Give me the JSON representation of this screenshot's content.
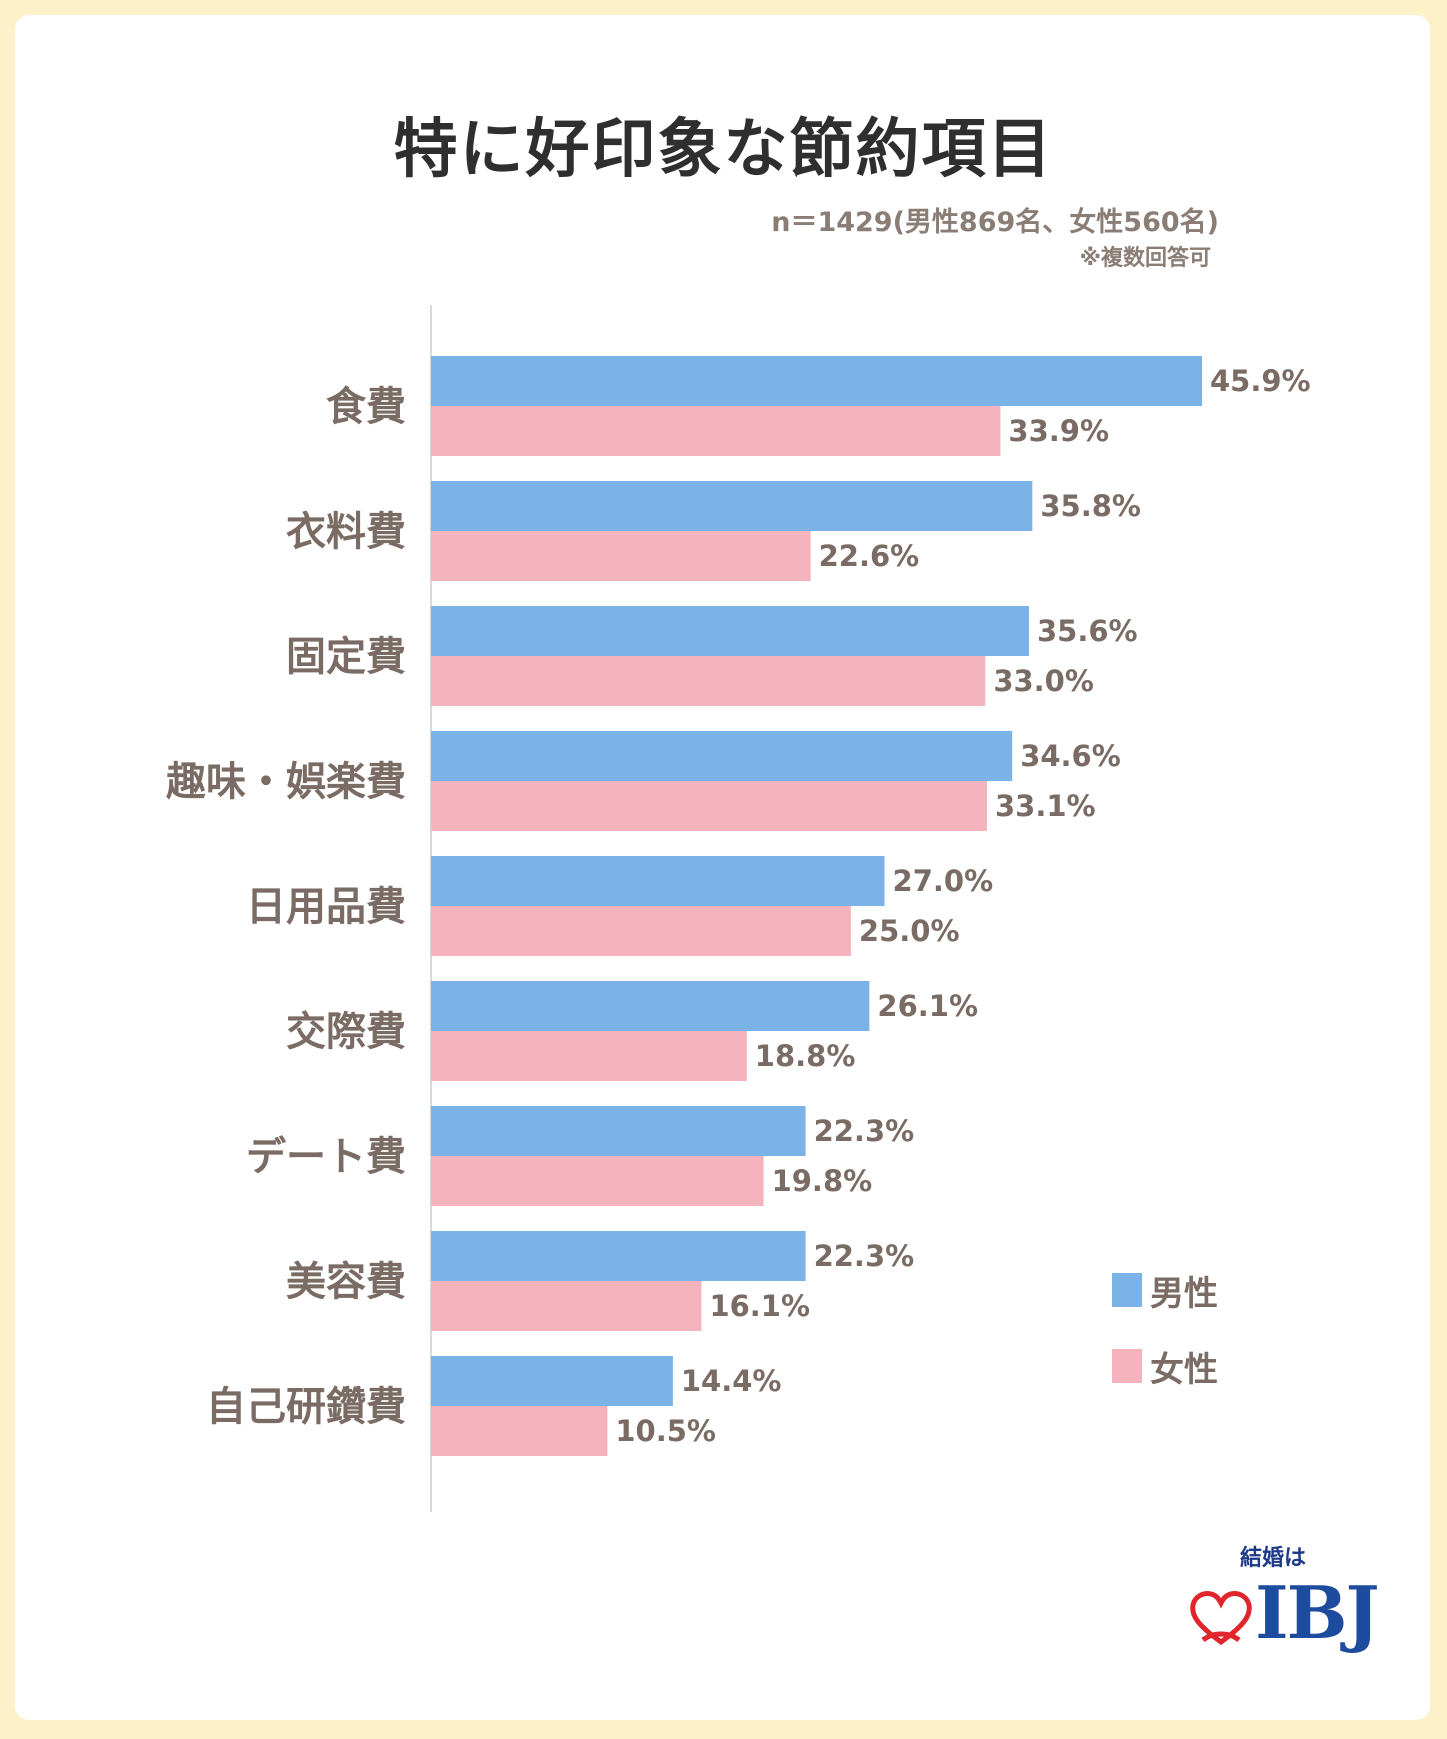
{
  "title": "特に好印象な節約項目",
  "note_sample": "n＝1429(男性869名、女性560名)",
  "note_multi": "※複数回答可",
  "colors": {
    "male": "#7cb3e6",
    "female": "#f5b3bd",
    "axis": "#d9d9d9"
  },
  "chart_data": {
    "type": "bar",
    "orientation": "horizontal",
    "categories": [
      "食費",
      "衣料費",
      "固定費",
      "趣味・娯楽費",
      "日用品費",
      "交際費",
      "デート費",
      "美容費",
      "自己研鑽費"
    ],
    "series": [
      {
        "name": "男性",
        "values": [
          45.9,
          35.8,
          35.6,
          34.6,
          27.0,
          26.1,
          22.3,
          22.3,
          14.4
        ]
      },
      {
        "name": "女性",
        "values": [
          33.9,
          22.6,
          33.0,
          33.1,
          25.0,
          18.8,
          19.8,
          16.1,
          10.5
        ]
      }
    ],
    "value_labels": {
      "男性": [
        "45.9%",
        "35.8%",
        "35.6%",
        "34.6%",
        "27.0%",
        "26.1%",
        "22.3%",
        "22.3%",
        "14.4%"
      ],
      "女性": [
        "33.9%",
        "22.6%",
        "33.0%",
        "33.1%",
        "25.0%",
        "18.8%",
        "19.8%",
        "16.1%",
        "10.5%"
      ]
    },
    "xlim": [
      0,
      50
    ],
    "grid": false,
    "legend": "bottom-right"
  },
  "legend": {
    "male": "男性",
    "female": "女性"
  },
  "logo": {
    "top_text": "結婚は",
    "main_text": "IBJ"
  }
}
